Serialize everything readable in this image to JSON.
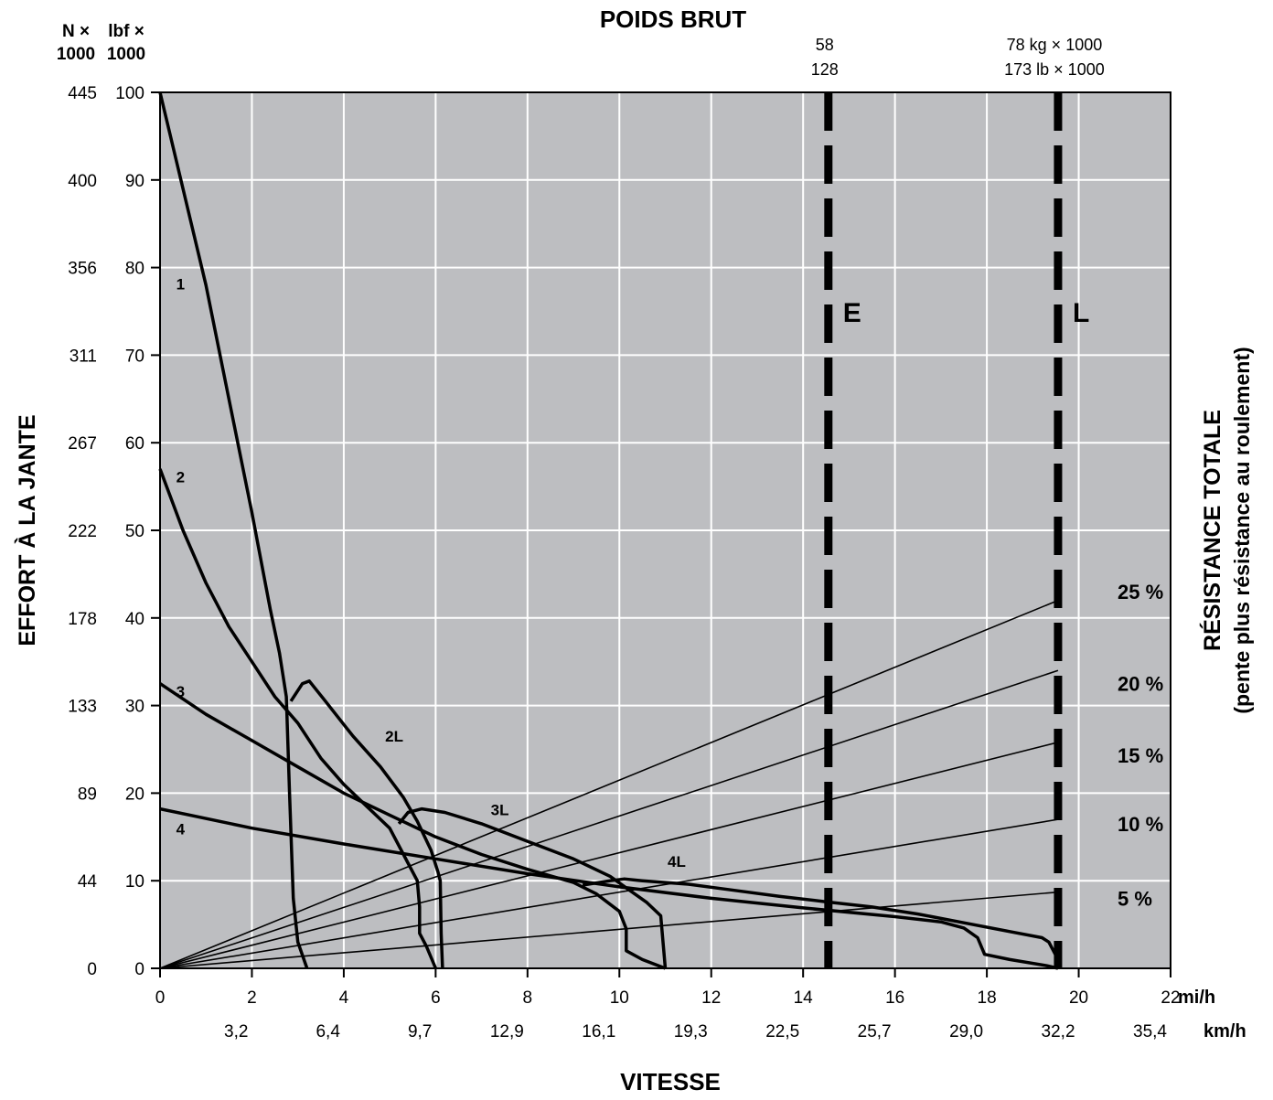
{
  "chart_data": {
    "type": "line",
    "title": "POIDS BRUT",
    "xlabel": "VITESSE",
    "ylabel": "EFFORT À LA JANTE",
    "ylabel_right": "RÉSISTANCE TOTALE",
    "ylabel_right_sub": "(pente plus résistance au roulement)",
    "x_unit": "mi/h",
    "x2_unit": "km/h",
    "y_unit_left_outer": [
      "N ×",
      "1000"
    ],
    "y_unit_left_inner": [
      "lbf ×",
      "1000"
    ],
    "xlim": [
      0,
      22
    ],
    "ylim": [
      0,
      100
    ],
    "x_ticks": [
      0,
      2,
      4,
      6,
      8,
      10,
      12,
      14,
      16,
      18,
      20,
      22
    ],
    "x_tick_labels": [
      "0",
      "2",
      "4",
      "6",
      "8",
      "10",
      "12",
      "14",
      "16",
      "18",
      "20",
      "22"
    ],
    "x2_ticks": [
      2,
      4,
      6,
      8,
      10,
      12,
      14,
      16,
      18,
      20,
      22
    ],
    "x2_tick_labels": [
      "3,2",
      "6,4",
      "9,7",
      "12,9",
      "16,1",
      "19,3",
      "22,5",
      "25,7",
      "29,0",
      "32,2",
      "35,4"
    ],
    "y_ticks": [
      0,
      10,
      20,
      30,
      40,
      50,
      60,
      70,
      80,
      90,
      100
    ],
    "y_tick_labels": [
      "0",
      "10",
      "20",
      "30",
      "40",
      "50",
      "60",
      "70",
      "80",
      "90",
      "100"
    ],
    "y_n_tick_labels": [
      "0",
      "44",
      "89",
      "133",
      "178",
      "222",
      "267",
      "311",
      "356",
      "400",
      "445"
    ],
    "grid": true,
    "weight_markers": [
      {
        "label": "E",
        "x": 14.55,
        "weight_top": "58",
        "weight_bottom": "128"
      },
      {
        "label": "L",
        "x": 19.55,
        "weight_top": "78 kg × 1000",
        "weight_bottom": "173 lb × 1000"
      }
    ],
    "series": [
      {
        "name": "1",
        "label_pos": [
          0.35,
          77.5
        ],
        "points": [
          [
            0,
            100
          ],
          [
            0.5,
            89
          ],
          [
            1,
            78
          ],
          [
            1.5,
            65
          ],
          [
            2,
            52
          ],
          [
            2.4,
            41
          ],
          [
            2.6,
            36
          ],
          [
            2.75,
            31
          ],
          [
            2.82,
            20
          ],
          [
            2.9,
            8
          ],
          [
            3.0,
            3
          ],
          [
            3.2,
            0
          ]
        ]
      },
      {
        "name": "2",
        "label_pos": [
          0.35,
          55.5
        ],
        "points": [
          [
            0,
            57
          ],
          [
            0.5,
            50
          ],
          [
            1,
            44
          ],
          [
            1.5,
            39
          ],
          [
            2,
            35
          ],
          [
            2.5,
            31
          ],
          [
            3,
            28
          ],
          [
            3.5,
            24
          ],
          [
            4,
            21
          ],
          [
            4.5,
            18.5
          ],
          [
            5,
            16
          ],
          [
            5.4,
            12
          ],
          [
            5.6,
            10
          ],
          [
            5.65,
            7
          ],
          [
            5.65,
            4
          ],
          [
            5.8,
            2.5
          ],
          [
            6.0,
            0
          ]
        ]
      },
      {
        "name": "3",
        "label_pos": [
          0.35,
          31
        ],
        "points": [
          [
            0,
            32.5
          ],
          [
            1,
            29
          ],
          [
            2,
            26
          ],
          [
            3,
            23
          ],
          [
            4,
            20
          ],
          [
            5,
            17.5
          ],
          [
            6,
            15
          ],
          [
            7,
            13
          ],
          [
            8,
            11.3
          ],
          [
            9,
            9.8
          ],
          [
            9.5,
            8.5
          ],
          [
            10,
            6.5
          ],
          [
            10.15,
            4.5
          ],
          [
            10.15,
            2
          ],
          [
            10.5,
            1
          ],
          [
            11,
            0
          ]
        ]
      },
      {
        "name": "4",
        "label_pos": [
          0.35,
          15.3
        ],
        "points": [
          [
            0,
            18.2
          ],
          [
            2,
            16
          ],
          [
            4,
            14.2
          ],
          [
            6,
            12.5
          ],
          [
            8,
            10.8
          ],
          [
            10,
            9.3
          ],
          [
            12,
            8
          ],
          [
            14,
            6.9
          ],
          [
            16,
            5.9
          ],
          [
            17,
            5.3
          ],
          [
            17.5,
            4.6
          ],
          [
            17.8,
            3.5
          ],
          [
            17.95,
            1.6
          ],
          [
            18.5,
            1
          ],
          [
            19.3,
            0.3
          ],
          [
            19.55,
            0
          ]
        ]
      },
      {
        "name": "2L",
        "label_pos": [
          4.9,
          25.9
        ],
        "points": [
          [
            2.85,
            30.5
          ],
          [
            3.1,
            32.5
          ],
          [
            3.25,
            32.8
          ],
          [
            3.6,
            30.5
          ],
          [
            4.2,
            26.5
          ],
          [
            4.8,
            23
          ],
          [
            5.3,
            19.5
          ],
          [
            5.6,
            16.8
          ],
          [
            5.9,
            13.5
          ],
          [
            6.05,
            11
          ],
          [
            6.1,
            10
          ],
          [
            6.12,
            4
          ],
          [
            6.15,
            0
          ]
        ]
      },
      {
        "name": "3L",
        "label_pos": [
          7.2,
          17.5
        ],
        "points": [
          [
            5.2,
            16.5
          ],
          [
            5.4,
            17.8
          ],
          [
            5.7,
            18.2
          ],
          [
            6.2,
            17.8
          ],
          [
            7,
            16.5
          ],
          [
            8,
            14.5
          ],
          [
            9,
            12.5
          ],
          [
            9.8,
            10.5
          ],
          [
            10.2,
            9
          ],
          [
            10.6,
            7.5
          ],
          [
            10.9,
            6
          ],
          [
            10.95,
            3
          ],
          [
            11.0,
            0
          ]
        ]
      },
      {
        "name": "4L",
        "label_pos": [
          11.05,
          11.6
        ],
        "points": [
          [
            9.2,
            9.5
          ],
          [
            9.8,
            10
          ],
          [
            10.1,
            10.2
          ],
          [
            10.5,
            10
          ],
          [
            11.5,
            9.6
          ],
          [
            12.5,
            8.9
          ],
          [
            13.5,
            8.2
          ],
          [
            14.5,
            7.6
          ],
          [
            15.5,
            7
          ],
          [
            16.5,
            6.2
          ],
          [
            17.5,
            5.2
          ],
          [
            18.5,
            4.2
          ],
          [
            19.2,
            3.5
          ],
          [
            19.35,
            3
          ],
          [
            19.5,
            1.5
          ],
          [
            19.55,
            0
          ]
        ]
      }
    ],
    "resistance_lines": [
      {
        "name": "25 %",
        "end_y": 42,
        "label_y": 43
      },
      {
        "name": "20 %",
        "end_y": 34,
        "label_y": 32.5
      },
      {
        "name": "15 %",
        "end_y": 25.8,
        "label_y": 24.3
      },
      {
        "name": "10 %",
        "end_y": 17,
        "label_y": 16.5
      },
      {
        "name": "5 %",
        "end_y": 8.7,
        "label_y": 8
      }
    ]
  }
}
